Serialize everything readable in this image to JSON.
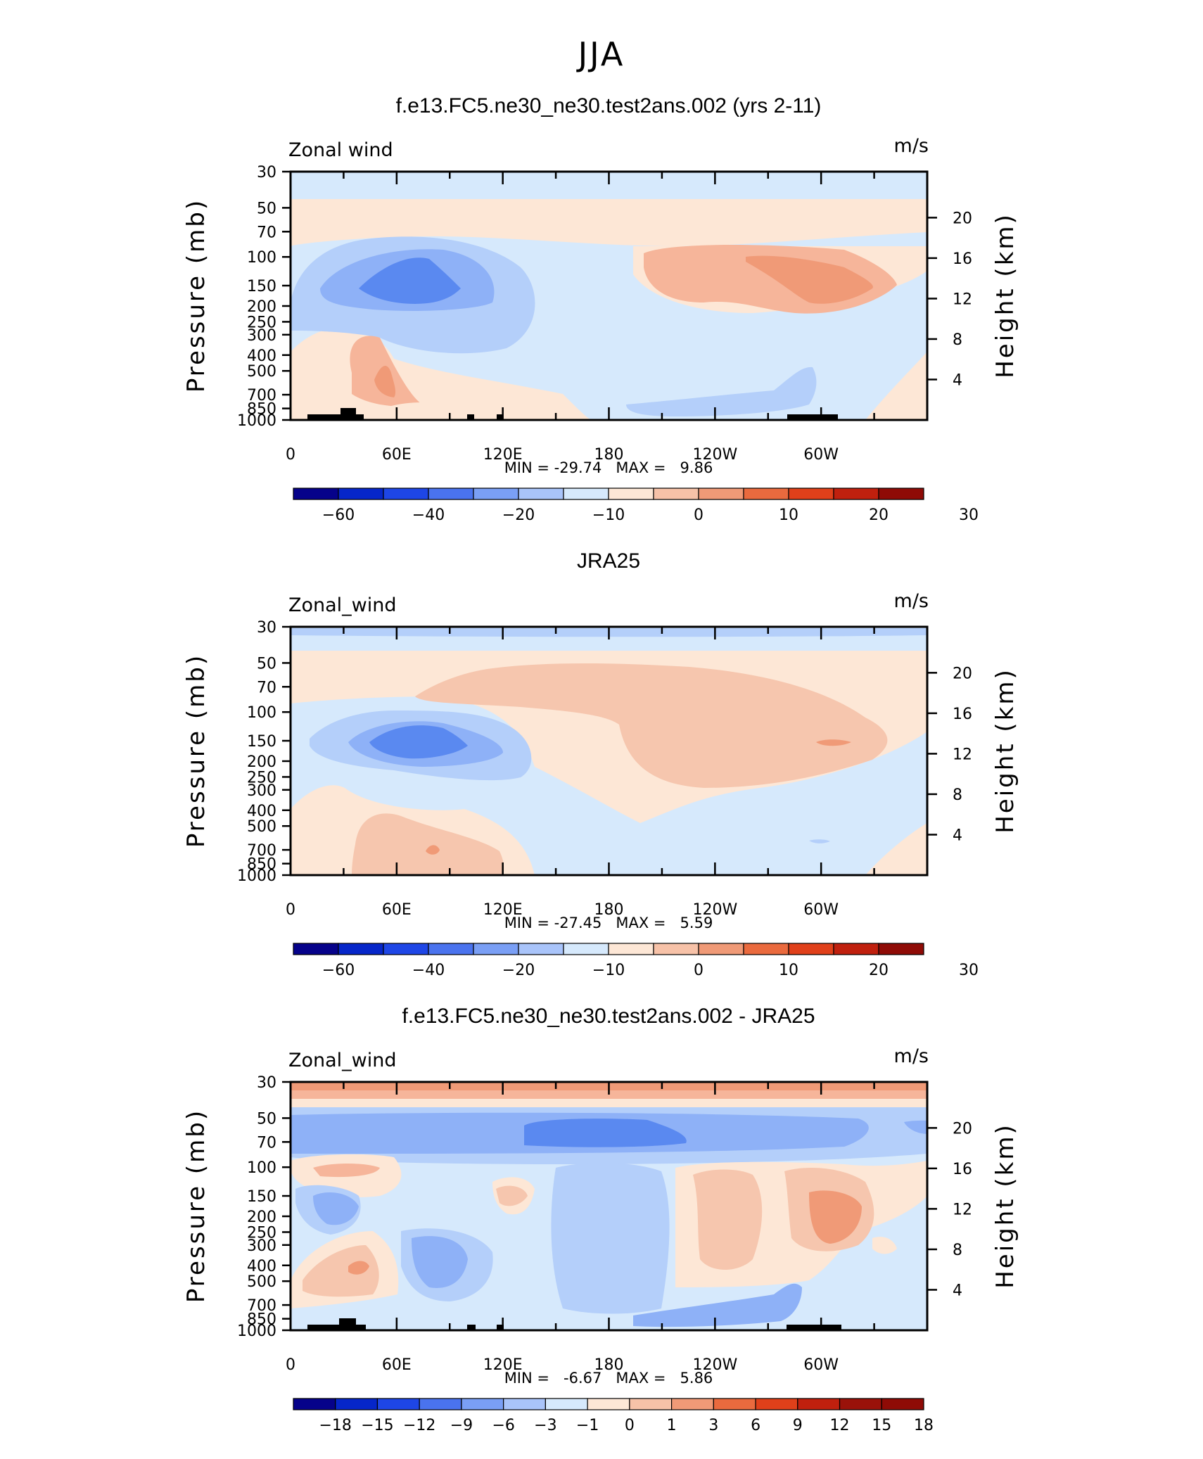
{
  "page": {
    "season": "JJA",
    "colors": {
      "land": "#000000",
      "frame": "#000000",
      "text": "#000000"
    }
  },
  "chart_data": [
    {
      "type": "heatmap",
      "title": "f.e13.FC5.ne30_ne30.test2ans.002 (yrs 2-11)",
      "variable": "Zonal wind",
      "units": "m/s",
      "ylabel": "Pressure (mb)",
      "y2label": "Height (km)",
      "xticks": [
        "0",
        "60E",
        "120E",
        "180",
        "120W",
        "60W"
      ],
      "yticks": [
        "30",
        "50",
        "70",
        "100",
        "150",
        "200",
        "250",
        "300",
        "400",
        "500",
        "700",
        "850",
        "1000"
      ],
      "y2ticks": [
        "20",
        "16",
        "12",
        "8",
        "4"
      ],
      "stats": "MIN = -29.74   MAX =   9.86",
      "min": -29.74,
      "max": 9.86,
      "colorbar": {
        "labels": [
          "-60",
          "-40",
          "-20",
          "-10",
          "0",
          "10",
          "20",
          "30"
        ],
        "levels": [
          -60,
          -50,
          -40,
          -30,
          -20,
          -15,
          -10,
          -5,
          0,
          5,
          10,
          15,
          20,
          25,
          30,
          35
        ]
      }
    },
    {
      "type": "heatmap",
      "title": "JRA25",
      "variable": "Zonal_wind",
      "units": "m/s",
      "ylabel": "Pressure (mb)",
      "y2label": "Height (km)",
      "xticks": [
        "0",
        "60E",
        "120E",
        "180",
        "120W",
        "60W"
      ],
      "yticks": [
        "30",
        "50",
        "70",
        "100",
        "150",
        "200",
        "250",
        "300",
        "400",
        "500",
        "700",
        "850",
        "1000"
      ],
      "y2ticks": [
        "20",
        "16",
        "12",
        "8",
        "4"
      ],
      "stats": "MIN = -27.45   MAX =   5.59",
      "min": -27.45,
      "max": 5.59,
      "colorbar": {
        "labels": [
          "-60",
          "-40",
          "-20",
          "-10",
          "0",
          "10",
          "20",
          "30"
        ],
        "levels": [
          -60,
          -50,
          -40,
          -30,
          -20,
          -15,
          -10,
          -5,
          0,
          5,
          10,
          15,
          20,
          25,
          30,
          35
        ]
      }
    },
    {
      "type": "heatmap",
      "title": "f.e13.FC5.ne30_ne30.test2ans.002 - JRA25",
      "variable": "Zonal_wind",
      "units": "m/s",
      "ylabel": "Pressure (mb)",
      "y2label": "Height (km)",
      "xticks": [
        "0",
        "60E",
        "120E",
        "180",
        "120W",
        "60W"
      ],
      "yticks": [
        "30",
        "50",
        "70",
        "100",
        "150",
        "200",
        "250",
        "300",
        "400",
        "500",
        "700",
        "850",
        "1000"
      ],
      "y2ticks": [
        "20",
        "16",
        "12",
        "8",
        "4"
      ],
      "stats": "MIN =   -6.67   MAX =   5.86",
      "min": -6.67,
      "max": 5.86,
      "colorbar": {
        "labels": [
          "-18",
          "-15",
          "-12",
          "-9",
          "-6",
          "-3",
          "-1",
          "0",
          "1",
          "3",
          "6",
          "9",
          "12",
          "15",
          "18"
        ],
        "levels": [
          -18,
          -15,
          -12,
          -9,
          -6,
          -3,
          -1,
          0,
          1,
          3,
          6,
          9,
          12,
          15,
          18
        ]
      }
    }
  ]
}
